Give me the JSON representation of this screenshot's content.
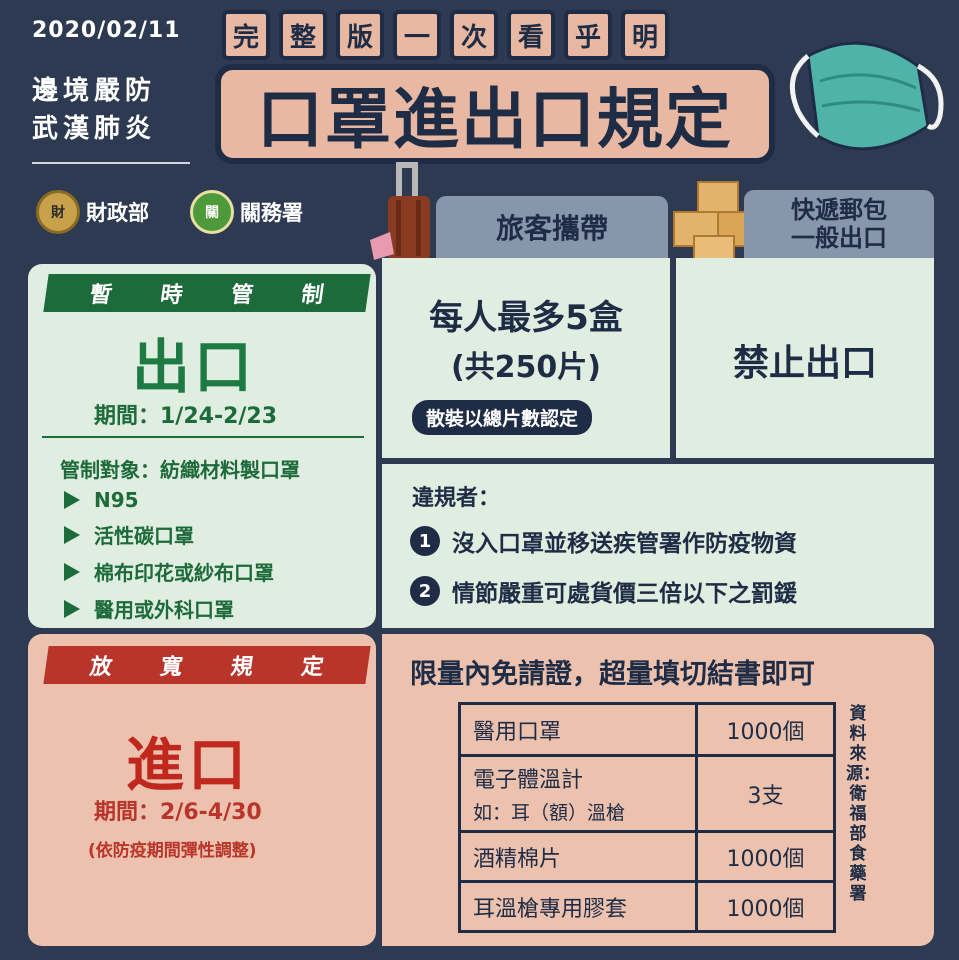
{
  "header": {
    "date": "2020/02/11",
    "side_title_line1": "邊境嚴防",
    "side_title_line2": "武漢肺炎",
    "subtitle_chars": [
      "完",
      "整",
      "版",
      "一",
      "次",
      "看",
      "乎",
      "明"
    ],
    "main_title": "口罩進出口規定",
    "orgs": [
      {
        "label": "財政部",
        "seal": "財"
      },
      {
        "label": "關務署",
        "seal": "關"
      }
    ]
  },
  "tabs": {
    "traveler": "旅客攜帶",
    "express_line1": "快遞郵包",
    "express_line2": "一般出口"
  },
  "export_control": {
    "ribbon": [
      "暫",
      "時",
      "管",
      "制"
    ],
    "heading": "出口",
    "period": "期間：1/24-2/23",
    "target_title": "管制對象：紡織材料製口罩",
    "items": [
      "N95",
      "活性碳口罩",
      "棉布印花或紗布口罩",
      "醫用或外科口罩"
    ]
  },
  "traveler_rule": {
    "line1": "每人最多5盒",
    "line2": "(共250片)",
    "pill": "散裝以總片數認定"
  },
  "express_rule": {
    "text": "禁止出口"
  },
  "violators": {
    "title": "違規者：",
    "items": [
      {
        "num": "1",
        "text": "沒入口罩並移送疾管署作防疫物資"
      },
      {
        "num": "2",
        "text": "情節嚴重可處貨價三倍以下之罰鍰"
      }
    ]
  },
  "import_relax": {
    "ribbon": [
      "放",
      "寬",
      "規",
      "定"
    ],
    "heading": "進口",
    "period": "期間：2/6-4/30",
    "note": "(依防疫期間彈性調整)"
  },
  "import_limits": {
    "title": "限量內免請證，超量填切結書即可",
    "rows": [
      {
        "item": "醫用口罩",
        "item2": "",
        "qty": "1000個"
      },
      {
        "item": "電子體溫計",
        "item2": "如：耳（額）溫槍",
        "qty": "3支"
      },
      {
        "item": "酒精棉片",
        "item2": "",
        "qty": "1000個"
      },
      {
        "item": "耳溫槍專用膠套",
        "item2": "",
        "qty": "1000個"
      }
    ],
    "source": "資料來源：衛福部食藥署"
  },
  "colors": {
    "background": "#2d3a52",
    "navy": "#1f2c45",
    "green_panel": "#dfeee0",
    "green_accent": "#1d6a3a",
    "pink_panel": "#ecc2ae",
    "red_accent": "#b9342a",
    "title_pink": "#e8b8a2"
  }
}
